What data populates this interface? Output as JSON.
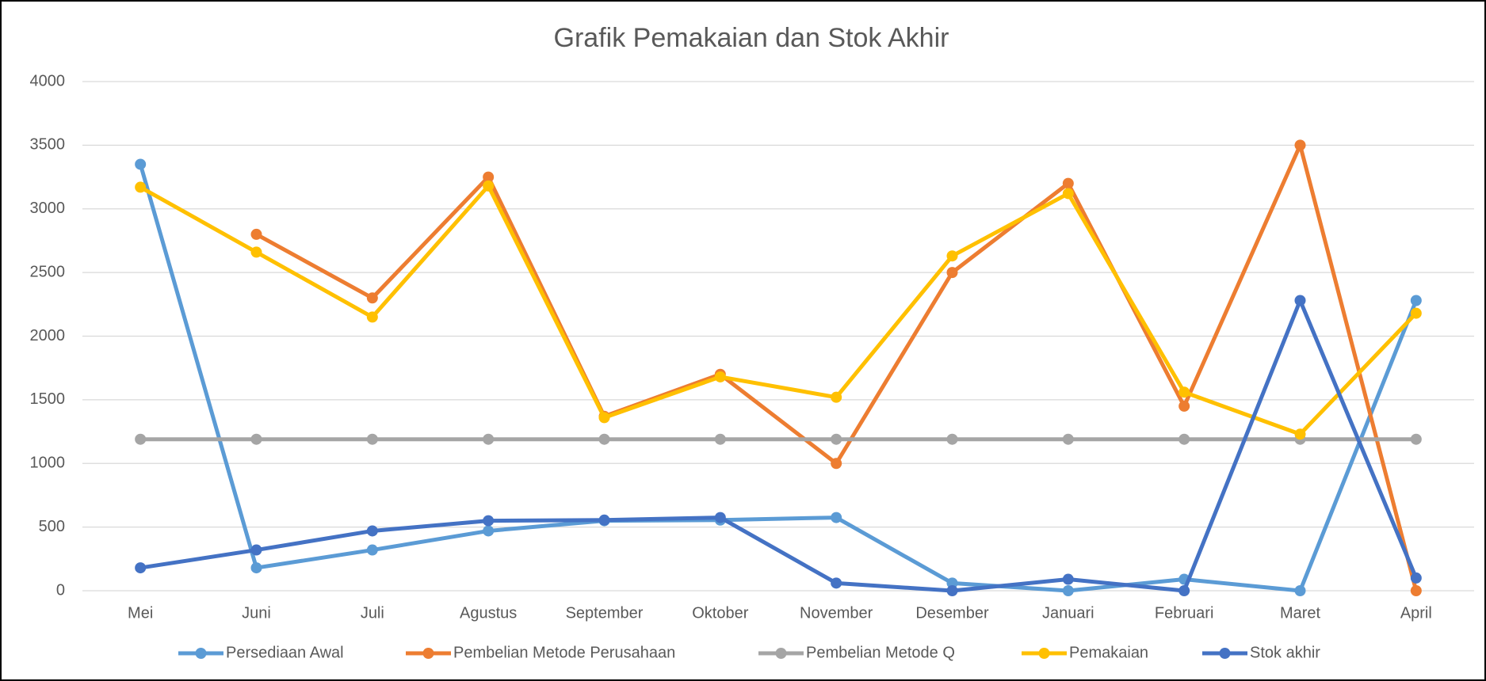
{
  "chart_data": {
    "type": "line",
    "title": "Grafik Pemakaian dan Stok Akhir",
    "categories": [
      "Mei",
      "Juni",
      "Juli",
      "Agustus",
      "September",
      "Oktober",
      "November",
      "Desember",
      "Januari",
      "Februari",
      "Maret",
      "April"
    ],
    "series": [
      {
        "name": "Persediaan Awal",
        "color": "#5b9bd5",
        "values": [
          3350,
          180,
          320,
          470,
          550,
          555,
          575,
          60,
          0,
          90,
          0,
          2280
        ]
      },
      {
        "name": "Pembelian Metode Perusahaan",
        "color": "#ed7d31",
        "values": [
          null,
          2800,
          2300,
          3250,
          1370,
          1700,
          1000,
          2500,
          3200,
          1450,
          3500,
          0
        ]
      },
      {
        "name": "Pembelian Metode Q",
        "color": "#a5a5a5",
        "values": [
          1190,
          1190,
          1190,
          1190,
          1190,
          1190,
          1190,
          1190,
          1190,
          1190,
          1190,
          1190
        ]
      },
      {
        "name": "Pemakaian",
        "color": "#ffc000",
        "values": [
          3170,
          2660,
          2150,
          3180,
          1360,
          1680,
          1520,
          2630,
          3120,
          1560,
          1230,
          2180
        ]
      },
      {
        "name": "Stok akhir",
        "color": "#4472c4",
        "values": [
          180,
          320,
          470,
          550,
          555,
          575,
          60,
          0,
          90,
          0,
          2280,
          100
        ]
      }
    ],
    "ylim": [
      0,
      4000
    ],
    "yticks": [
      0,
      500,
      1000,
      1500,
      2000,
      2500,
      3000,
      3500,
      4000
    ],
    "grid": true,
    "legend": "bottom"
  }
}
